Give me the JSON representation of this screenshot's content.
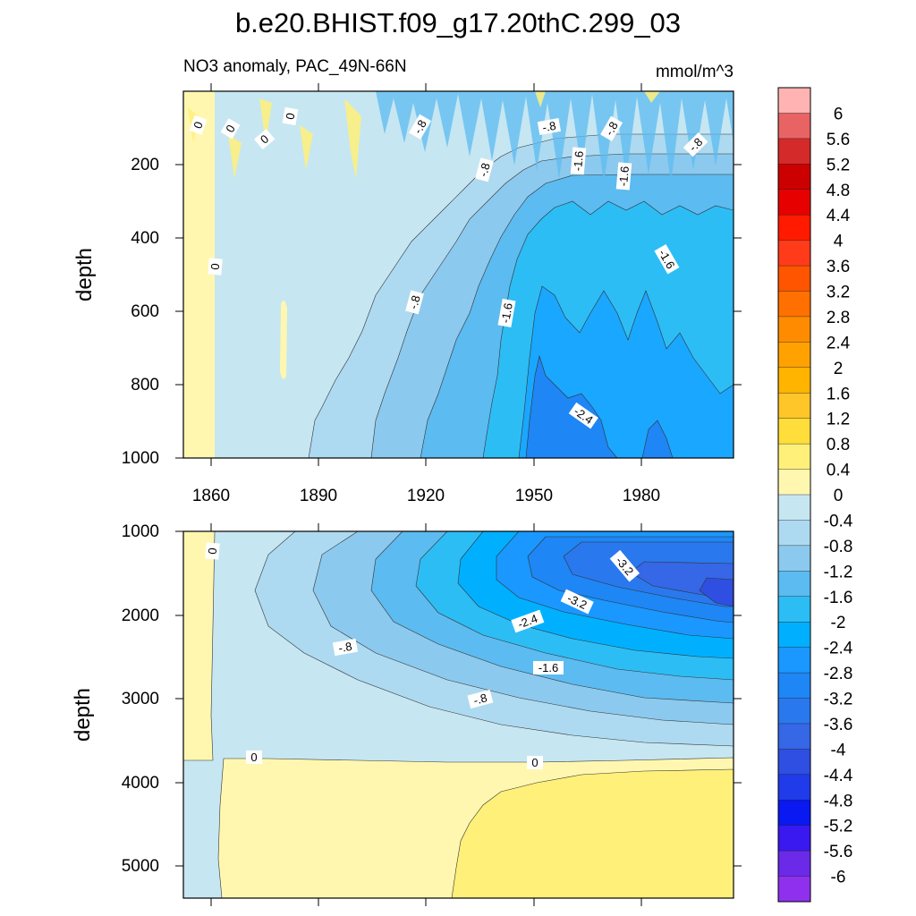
{
  "chart_data": {
    "type": "heatmap",
    "title": "b.e20.BHIST.f09_g17.20thC.299_03",
    "subtitle_left": "NO3 anomaly, PAC_49N-66N",
    "subtitle_right": "mmol/m^3",
    "xlim": [
      1850,
      2005
    ],
    "x_ticks": [
      "1860",
      "1890",
      "1920",
      "1950",
      "1980"
    ],
    "colorbar": {
      "labels": [
        "6",
        "5.6",
        "5.2",
        "4.8",
        "4.4",
        "4",
        "3.6",
        "3.2",
        "2.8",
        "2.4",
        "2",
        "1.6",
        "1.2",
        "0.8",
        "0.4",
        "0",
        "-0.4",
        "-0.8",
        "-1.2",
        "-1.6",
        "-2",
        "-2.4",
        "-2.8",
        "-3.2",
        "-3.6",
        "-4",
        "-4.4",
        "-4.8",
        "-5.2",
        "-5.6",
        "-6"
      ],
      "colors": [
        "#ffb3b3",
        "#e86464",
        "#d42a2a",
        "#cc0000",
        "#e60000",
        "#ff1a00",
        "#ff3b1a",
        "#ff5500",
        "#ff7000",
        "#ff8c00",
        "#ffa200",
        "#ffb400",
        "#ffc62a",
        "#ffdd3a",
        "#fff07a",
        "#fff7b0",
        "#c6e6f2",
        "#addaf0",
        "#8cc9ee",
        "#5cbbf0",
        "#2dbdf5",
        "#00b0ff",
        "#1a98ff",
        "#1e86f5",
        "#2a78ee",
        "#3567e6",
        "#2e4fe2",
        "#1f3bea",
        "#0a18f2",
        "#3a18f0",
        "#6a2ae8",
        "#8f30ee"
      ]
    },
    "panels": [
      {
        "name": "upper",
        "ylabel": "depth",
        "ylim": [
          0,
          1000
        ],
        "y_ticks": [
          "200",
          "400",
          "600",
          "800",
          "1000"
        ],
        "contour_labels": [
          "0",
          "0",
          "0",
          "0",
          "-.8",
          "-.8",
          "-1.6",
          "-.8",
          "-1.6",
          "-.8",
          "-.8",
          "0",
          "-.8",
          "-1.6",
          "-1.6",
          "-2.4"
        ]
      },
      {
        "name": "lower",
        "ylabel": "depth",
        "ylim": [
          1000,
          5400
        ],
        "y_ticks": [
          "1000",
          "2000",
          "3000",
          "4000",
          "5000"
        ],
        "contour_labels": [
          "0",
          "-3.2",
          "-3.2",
          "-2.4",
          "-.8",
          "-1.6",
          "-.8",
          "0",
          "0"
        ]
      }
    ]
  }
}
